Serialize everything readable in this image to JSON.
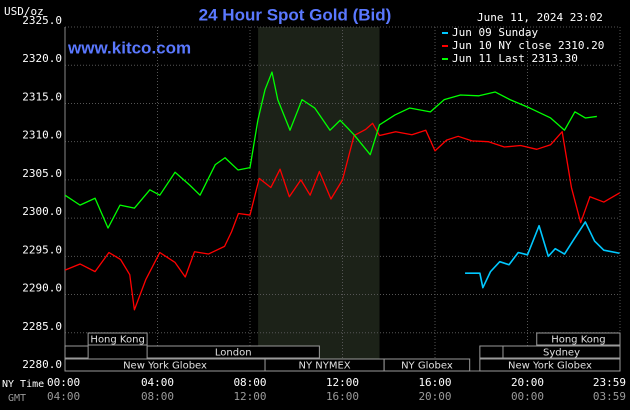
{
  "chart_data": {
    "type": "line",
    "title": "24 Hour Spot Gold (Bid)",
    "site": "www.kitco.com",
    "y_label": "USD/oz",
    "timestamp": "June 11, 2024 23:02",
    "x_row_labels": [
      "NY Time",
      "GMT"
    ],
    "xlim": [
      0,
      24
    ],
    "ylim": [
      2280,
      2325
    ],
    "xticks": [
      {
        "value": 0,
        "label": "00:00"
      },
      {
        "value": 4,
        "label": "04:00"
      },
      {
        "value": 8,
        "label": "08:00"
      },
      {
        "value": 12,
        "label": "12:00"
      },
      {
        "value": 16,
        "label": "16:00"
      },
      {
        "value": 20,
        "label": "20:00"
      },
      {
        "value": 24,
        "label": "23:59"
      }
    ],
    "xticks_gmt": [
      "04:00",
      "08:00",
      "12:00",
      "16:00",
      "20:00",
      "00:00",
      "03:59"
    ],
    "yticks": [
      {
        "value": 2280,
        "label": "2280.0"
      },
      {
        "value": 2285,
        "label": "2285.0"
      },
      {
        "value": 2290,
        "label": "2290.0"
      },
      {
        "value": 2295,
        "label": "2295.0"
      },
      {
        "value": 2300,
        "label": "2300.0"
      },
      {
        "value": 2305,
        "label": "2305.0"
      },
      {
        "value": 2310,
        "label": "2310.0"
      },
      {
        "value": 2315,
        "label": "2315.0"
      },
      {
        "value": 2320,
        "label": "2320.0"
      },
      {
        "value": 2325,
        "label": "2325.0"
      }
    ],
    "grid": true,
    "highlight": [
      8.35,
      13.6
    ],
    "sessions": [
      {
        "label": "Hong Kong",
        "start": 1.0,
        "end": 3.55,
        "row": 0
      },
      {
        "label": null,
        "start": 0,
        "end": 1.0,
        "row": 1
      },
      {
        "label": "London",
        "start": 3.55,
        "end": 11.0,
        "row": 1
      },
      {
        "label": "New York Globex",
        "start": 0,
        "end": 8.65,
        "row": 2
      },
      {
        "label": "NY NYMEX",
        "start": 8.65,
        "end": 13.8,
        "row": 2
      },
      {
        "label": "NY Globex",
        "start": 13.8,
        "end": 17.5,
        "row": 2
      },
      {
        "label": "Hong Kong",
        "start": 20.4,
        "end": 24,
        "row": 0
      },
      {
        "label": null,
        "start": 17.94,
        "end": 18.94,
        "row": 1
      },
      {
        "label": "Sydney",
        "start": 18.94,
        "end": 24,
        "row": 1
      },
      {
        "label": "New York Globex",
        "start": 17.94,
        "end": 24,
        "row": 2
      }
    ],
    "series": [
      {
        "name": "Jun 09 Sunday",
        "color": "#00c8ff",
        "x": [
          17.3,
          17.94,
          18.07,
          18.4,
          18.8,
          19.2,
          19.6,
          20.0,
          20.5,
          20.9,
          21.2,
          21.6,
          22.0,
          22.5,
          22.9,
          23.3,
          23.98
        ],
        "values": [
          2292.8,
          2292.8,
          2290.9,
          2293.0,
          2294.3,
          2293.9,
          2295.5,
          2295.2,
          2299.0,
          2295.0,
          2296.0,
          2295.3,
          2297.2,
          2299.5,
          2297.0,
          2295.8,
          2295.4
        ]
      },
      {
        "name": "Jun 10 NY close 2310.20",
        "color": "#ff0000",
        "x": [
          0,
          0.65,
          1.3,
          1.9,
          2.4,
          2.8,
          3.0,
          3.5,
          4.1,
          4.76,
          5.2,
          5.6,
          6.2,
          6.9,
          7.2,
          7.5,
          8.0,
          8.4,
          8.9,
          9.3,
          9.7,
          10.2,
          10.6,
          11.0,
          11.5,
          12.0,
          12.5,
          13.0,
          13.3,
          13.6,
          14.3,
          15.0,
          15.6,
          16.0,
          16.5,
          17.0,
          17.6,
          18.3,
          19.0,
          19.7,
          20.4,
          21.0,
          21.5,
          21.9,
          22.3,
          22.7,
          23.3,
          23.98
        ],
        "values": [
          2293.2,
          2294.0,
          2293.0,
          2295.5,
          2294.6,
          2292.6,
          2288.0,
          2292.0,
          2295.5,
          2294.2,
          2292.3,
          2295.6,
          2295.3,
          2296.3,
          2298.2,
          2300.6,
          2300.4,
          2305.2,
          2304.0,
          2306.4,
          2302.8,
          2305.0,
          2303.0,
          2306.1,
          2302.5,
          2305.0,
          2310.8,
          2311.6,
          2312.4,
          2310.8,
          2311.3,
          2310.9,
          2311.5,
          2308.8,
          2310.2,
          2310.7,
          2310.1,
          2310.0,
          2309.3,
          2309.5,
          2309.0,
          2309.6,
          2311.3,
          2304.0,
          2299.4,
          2302.8,
          2302.1,
          2303.3
        ]
      },
      {
        "name": "Jun 11 Last 2313.30",
        "color": "#00ff00",
        "x": [
          0,
          0.65,
          1.3,
          1.86,
          2.38,
          3.0,
          3.67,
          4.1,
          4.76,
          5.4,
          5.84,
          6.5,
          6.92,
          7.48,
          8.0,
          8.34,
          8.65,
          8.95,
          9.2,
          9.73,
          10.25,
          10.8,
          11.46,
          11.9,
          12.5,
          13.2,
          13.6,
          14.27,
          14.9,
          15.8,
          16.4,
          17.1,
          17.9,
          18.6,
          19.24,
          20.1,
          21.0,
          21.6,
          22.05,
          22.5,
          23.0
        ],
        "values": [
          2303.0,
          2301.7,
          2302.6,
          2298.7,
          2301.7,
          2301.3,
          2303.7,
          2303.0,
          2306.0,
          2304.3,
          2303.0,
          2307.0,
          2307.9,
          2306.3,
          2306.6,
          2312.8,
          2316.8,
          2319.1,
          2315.5,
          2311.5,
          2315.5,
          2314.4,
          2311.5,
          2312.8,
          2310.9,
          2308.3,
          2312.2,
          2313.5,
          2314.4,
          2313.9,
          2315.5,
          2316.1,
          2316.0,
          2316.5,
          2315.5,
          2314.4,
          2313.1,
          2311.5,
          2313.9,
          2313.1,
          2313.3
        ]
      }
    ]
  }
}
